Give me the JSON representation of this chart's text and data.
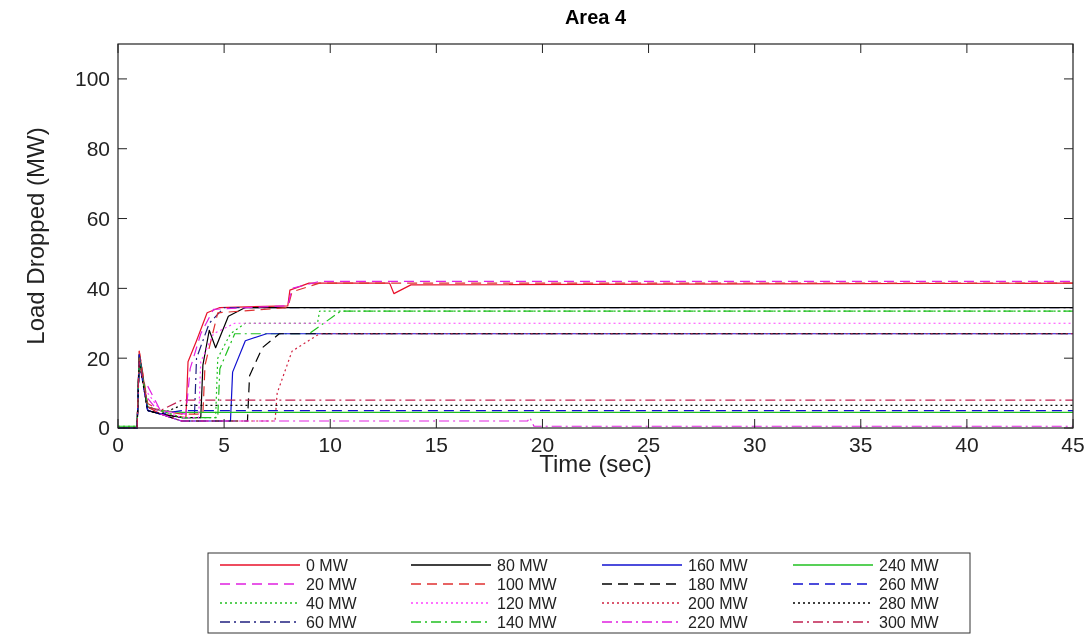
{
  "chart_data": {
    "type": "line",
    "title": "Area 4",
    "xlabel": "Time (sec)",
    "ylabel": "Load Dropped (MW)",
    "xlim": [
      0,
      45
    ],
    "ylim": [
      0,
      110
    ],
    "xticks": [
      0,
      5,
      10,
      15,
      20,
      25,
      30,
      35,
      40,
      45
    ],
    "yticks": [
      0,
      20,
      40,
      60,
      80,
      100
    ],
    "grid": false,
    "legend": "bottom",
    "series": [
      {
        "name": "0 MW",
        "color": "#e8102a",
        "line_style": "solid",
        "x": [
          0,
          0.9,
          1.0,
          1.4,
          2.0,
          3.2,
          3.3,
          3.7,
          4.2,
          4.8,
          8.0,
          8.1,
          9.0,
          12.8,
          13.0,
          13.8,
          45
        ],
        "values": [
          0,
          0,
          22,
          6,
          4,
          3,
          19,
          25,
          33,
          34.5,
          35,
          39.5,
          41.5,
          41.5,
          38.5,
          41,
          41.5
        ]
      },
      {
        "name": "20 MW",
        "color": "#e020e0",
        "line_style": "dashed",
        "x": [
          1.4,
          2.0,
          3.2,
          3.4,
          3.9,
          4.5,
          8.0,
          8.2,
          9.5,
          45
        ],
        "values": [
          12,
          5,
          4,
          17,
          27,
          34,
          35,
          40,
          42,
          42
        ]
      },
      {
        "name": "40 MW",
        "color": "#20c020",
        "line_style": "dotted",
        "x": [
          0,
          0.9,
          1.0,
          1.4,
          2.0,
          3.0,
          4.6,
          4.7,
          5.3,
          6.0,
          9.4,
          9.5,
          45
        ],
        "values": [
          0.5,
          0.5,
          20,
          6,
          5,
          3,
          3,
          20,
          27,
          30,
          30,
          33.5,
          33.5
        ]
      },
      {
        "name": "60 MW",
        "color": "#202080",
        "line_style": "dashdot",
        "x": [
          0,
          0.9,
          1.0,
          1.4,
          2.0,
          3.0,
          3.6,
          3.7,
          4.3,
          5.0,
          45
        ],
        "values": [
          0,
          0,
          21,
          5,
          4,
          3,
          3,
          20,
          30,
          34.5,
          34.5
        ]
      },
      {
        "name": "80 MW",
        "color": "#000000",
        "line_style": "solid",
        "x": [
          0,
          0.9,
          1.0,
          1.4,
          2.0,
          3.0,
          3.9,
          4.0,
          4.3,
          4.6,
          5.2,
          6.0,
          45
        ],
        "values": [
          0,
          0,
          21,
          5,
          4,
          3,
          3,
          18,
          28,
          23,
          32,
          34.5,
          34.5
        ]
      },
      {
        "name": "100 MW",
        "color": "#e03030",
        "line_style": "dashed",
        "x": [
          0,
          0.9,
          1.0,
          1.4,
          2.0,
          3.0,
          4.0,
          4.1,
          4.7,
          8.0,
          8.2,
          9.5,
          45
        ],
        "values": [
          0,
          0,
          22,
          7,
          5,
          4,
          4,
          18,
          33,
          34.5,
          39,
          41.5,
          41.5
        ]
      },
      {
        "name": "120 MW",
        "color": "#ff40ff",
        "line_style": "dotted",
        "x": [
          1.4,
          2.0,
          3.0,
          3.8,
          3.9,
          4.5,
          5.5,
          45
        ],
        "values": [
          10,
          5,
          3,
          3,
          19,
          27,
          30,
          30
        ]
      },
      {
        "name": "140 MW",
        "color": "#20c020",
        "line_style": "dashdot",
        "x": [
          0,
          0.9,
          1.0,
          1.4,
          2.0,
          3.0,
          4.7,
          4.8,
          5.5,
          9.0,
          10.5,
          45
        ],
        "values": [
          0,
          0,
          21,
          6,
          5,
          3,
          3,
          17,
          27,
          27,
          33.5,
          33.5
        ]
      },
      {
        "name": "160 MW",
        "color": "#1010d0",
        "line_style": "solid",
        "x": [
          0,
          0.9,
          1.0,
          1.4,
          2.0,
          3.0,
          5.3,
          5.4,
          6.0,
          7.0,
          45
        ],
        "values": [
          0,
          0,
          21,
          5,
          4,
          2,
          2,
          16,
          25,
          27,
          27
        ]
      },
      {
        "name": "180 MW",
        "color": "#000000",
        "line_style": "dashed",
        "x": [
          0,
          0.9,
          1.0,
          1.4,
          2.0,
          3.0,
          6.1,
          6.2,
          6.8,
          7.6,
          45
        ],
        "values": [
          0,
          0,
          20,
          5,
          4,
          2,
          2,
          15,
          23,
          27,
          27
        ]
      },
      {
        "name": "200 MW",
        "color": "#d02040",
        "line_style": "dotted",
        "x": [
          0,
          0.9,
          1.0,
          1.4,
          2.0,
          3.0,
          7.4,
          7.5,
          8.2,
          9.5,
          45
        ],
        "values": [
          0,
          0,
          20,
          6,
          4,
          2,
          2,
          10,
          22,
          27,
          27
        ]
      },
      {
        "name": "220 MW",
        "color": "#e020e0",
        "line_style": "dashdot",
        "x": [
          1.4,
          2.0,
          3.0,
          19.3,
          19.4,
          19.6,
          45
        ],
        "values": [
          8.5,
          4,
          2,
          2,
          3,
          0.5,
          0.5
        ]
      },
      {
        "name": "240 MW",
        "color": "#20c020",
        "line_style": "solid",
        "x": [
          0,
          0.9,
          1.0,
          1.4,
          2.0,
          3.0,
          4.0,
          45
        ],
        "values": [
          0.5,
          0.5,
          20,
          6,
          5,
          4.5,
          4.5,
          4.5
        ]
      },
      {
        "name": "260 MW",
        "color": "#1010d0",
        "line_style": "dashed",
        "x": [
          0,
          0.9,
          1.0,
          1.4,
          2.0,
          3.0,
          4.0,
          45
        ],
        "values": [
          0,
          0,
          19,
          5,
          4,
          5,
          5,
          5
        ]
      },
      {
        "name": "280 MW",
        "color": "#000000",
        "line_style": "dotted",
        "x": [
          0,
          0.9,
          1.0,
          1.4,
          2.0,
          3.0,
          4.0,
          45
        ],
        "values": [
          0,
          0,
          19,
          5,
          4,
          6.5,
          6.5,
          6.5
        ]
      },
      {
        "name": "300 MW",
        "color": "#c02050",
        "line_style": "dashdot",
        "x": [
          0.9,
          1.0,
          1.4,
          2.0,
          3.0,
          4.0,
          45
        ],
        "values": [
          0,
          20,
          6,
          5,
          8,
          8,
          8
        ]
      }
    ]
  }
}
